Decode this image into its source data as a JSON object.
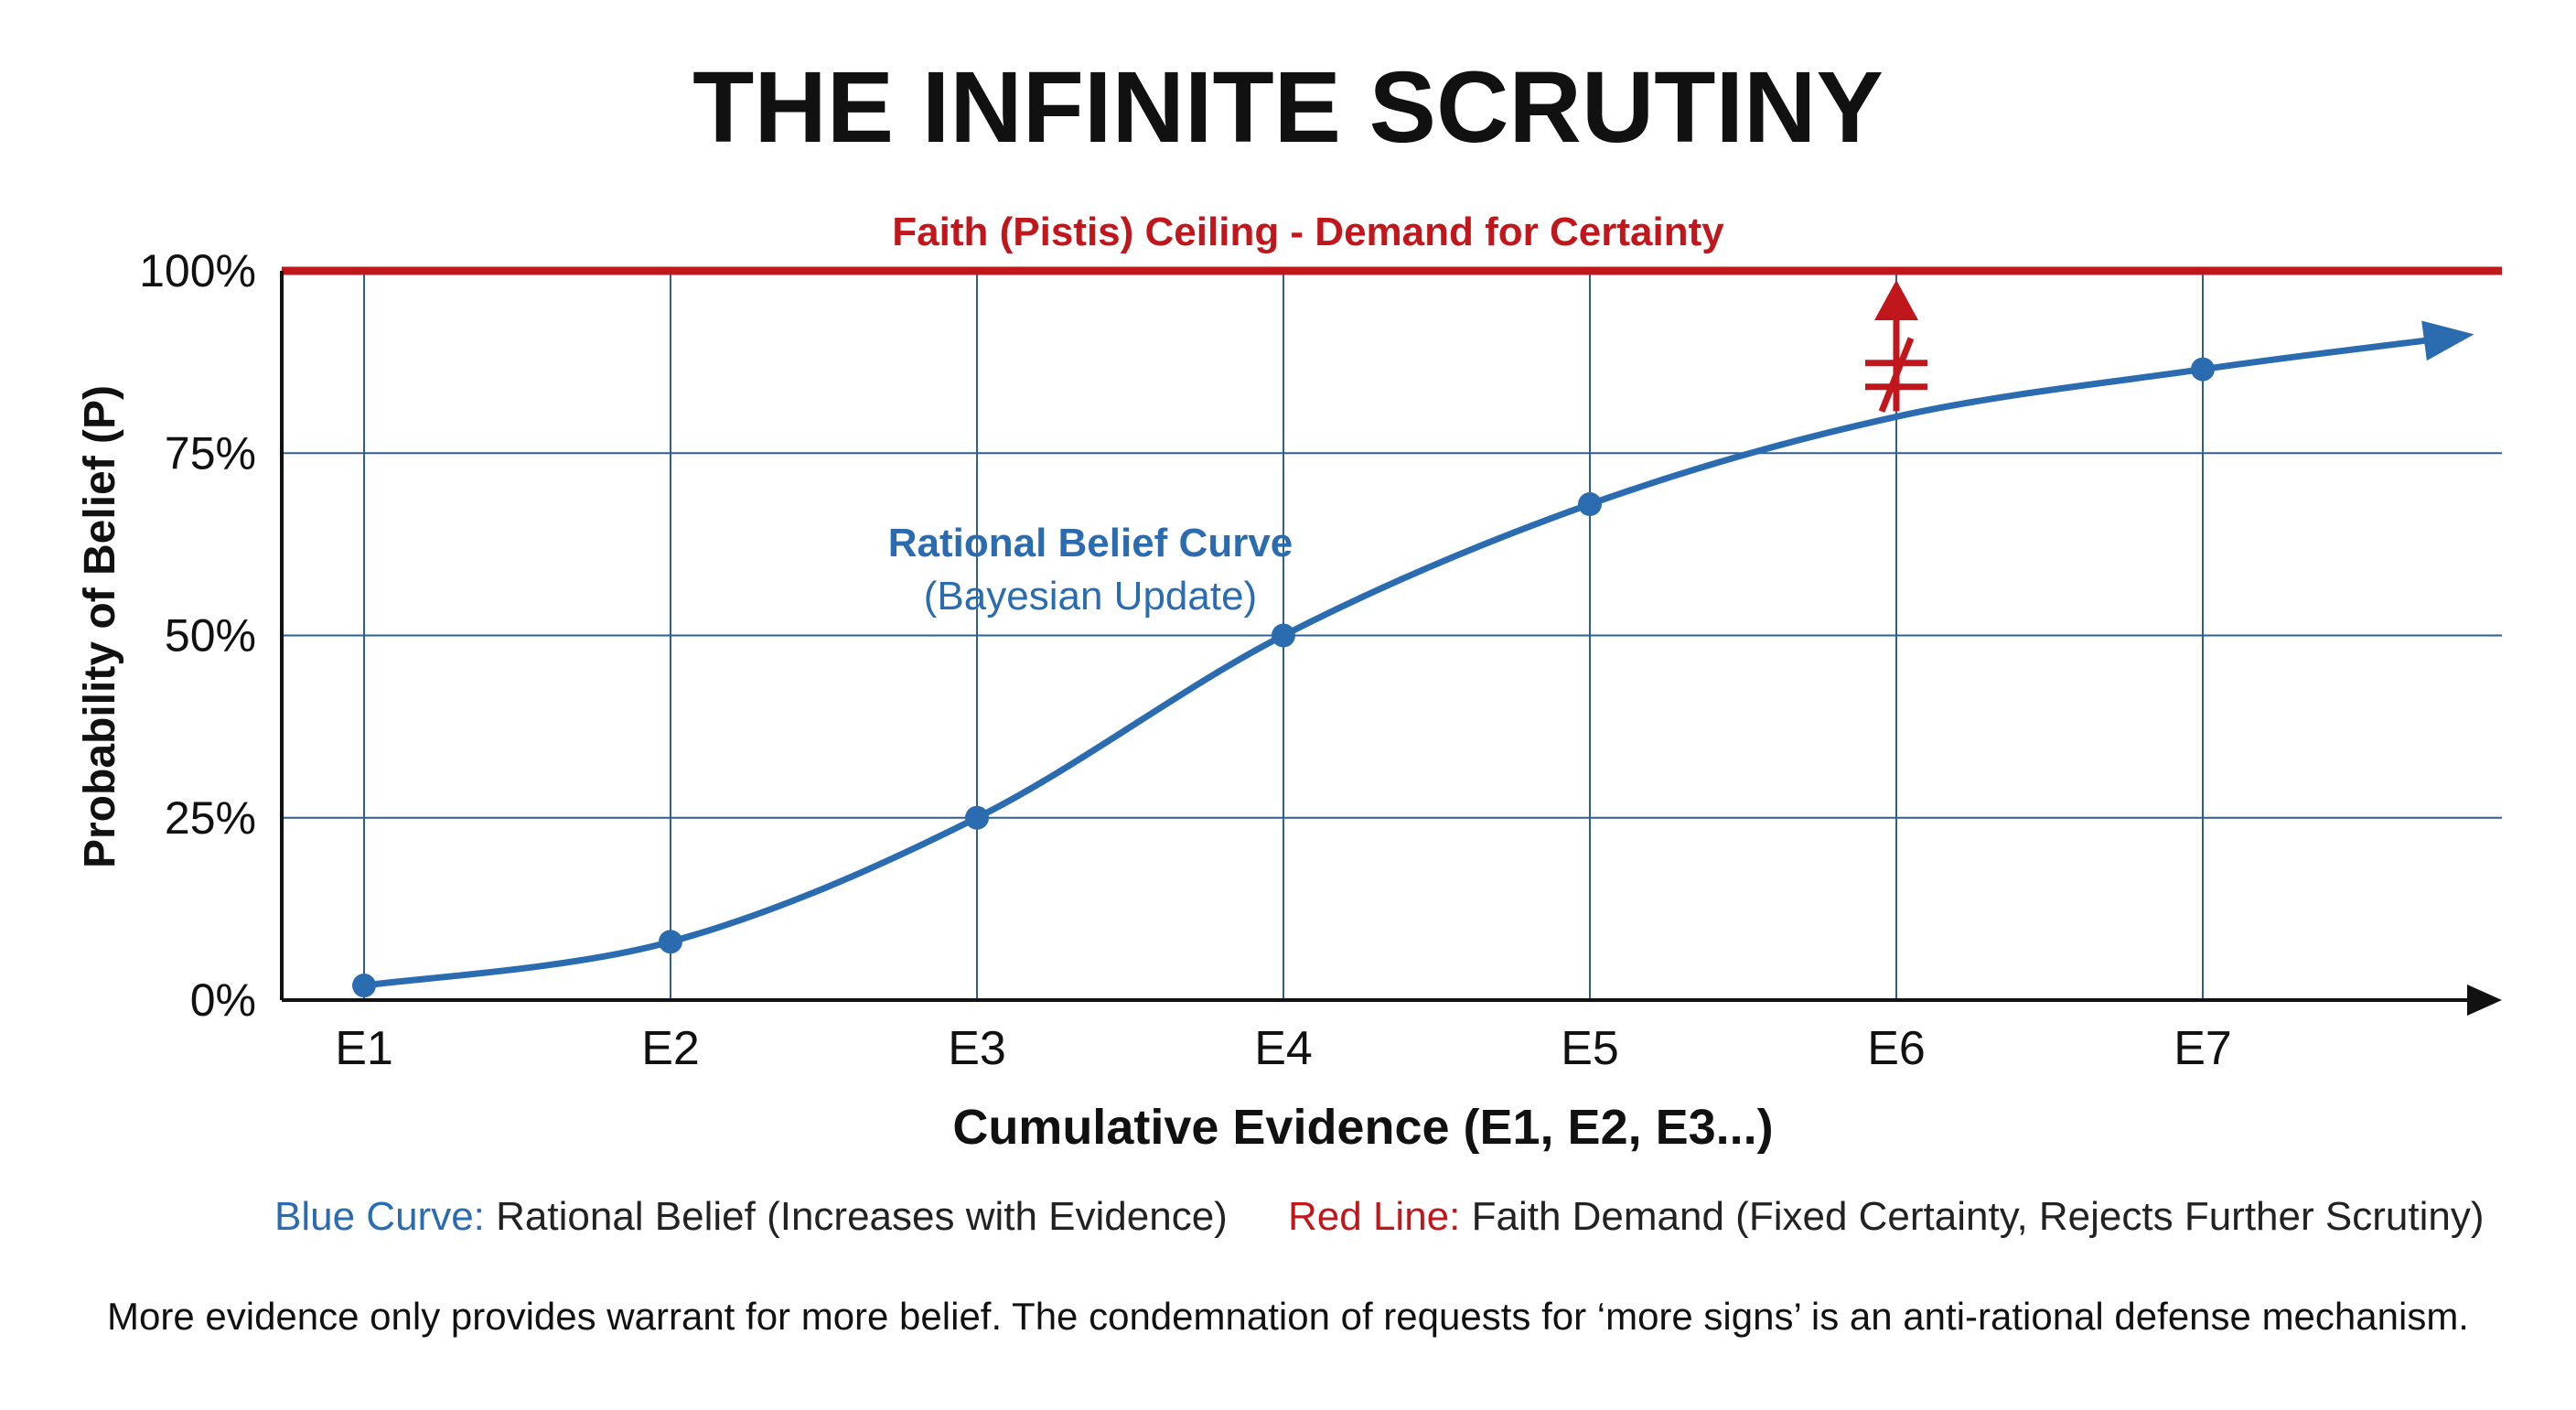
{
  "chart_data": {
    "type": "line",
    "title": "THE INFINITE SCRUTINY",
    "xlabel": "Cumulative Evidence (E1, E2, E3...)",
    "ylabel": "Probability of Belief (P)",
    "categories": [
      "E1",
      "E2",
      "E3",
      "E4",
      "E5",
      "E6",
      "E7"
    ],
    "y_ticks": [
      "0%",
      "25%",
      "50%",
      "75%",
      "100%"
    ],
    "ylim": [
      0,
      100
    ],
    "grid": true,
    "series": [
      {
        "name": "Rational Belief Curve",
        "subtitle": "(Bayesian Update)",
        "color": "#2b6cb0",
        "points": [
          {
            "x": "E1",
            "y": 2
          },
          {
            "x": "E2",
            "y": 8
          },
          {
            "x": "E3",
            "y": 25
          },
          {
            "x": "E4",
            "y": 50
          },
          {
            "x": "E5",
            "y": 68
          },
          {
            "x": "E7",
            "y": 86.5
          }
        ],
        "curve_values": [
          2,
          8,
          25,
          50,
          68,
          80,
          86.5,
          90.5
        ]
      }
    ],
    "ceiling": {
      "value": 100,
      "label": "Faith (Pistis) Ceiling - Demand for Certainty",
      "color": "#c0171d"
    },
    "not_equal_marker": {
      "x": "E6",
      "from": 80,
      "to": 100,
      "color": "#c0171d"
    }
  },
  "legend": {
    "blue_key": "Blue Curve:",
    "blue_text": "Rational Belief (Increases with Evidence)",
    "red_key": "Red Line:",
    "red_text": "Faith Demand (Fixed Certainty, Rejects Further Scrutiny)"
  },
  "footnote": "More evidence only provides warrant for more belief. The condemnation of requests for ‘more signs’ is an anti-rational defense mechanism.",
  "colors": {
    "blue": "#2b6cb0",
    "red": "#c0171d",
    "grid": "#2f5f8f",
    "axis": "#111111"
  }
}
